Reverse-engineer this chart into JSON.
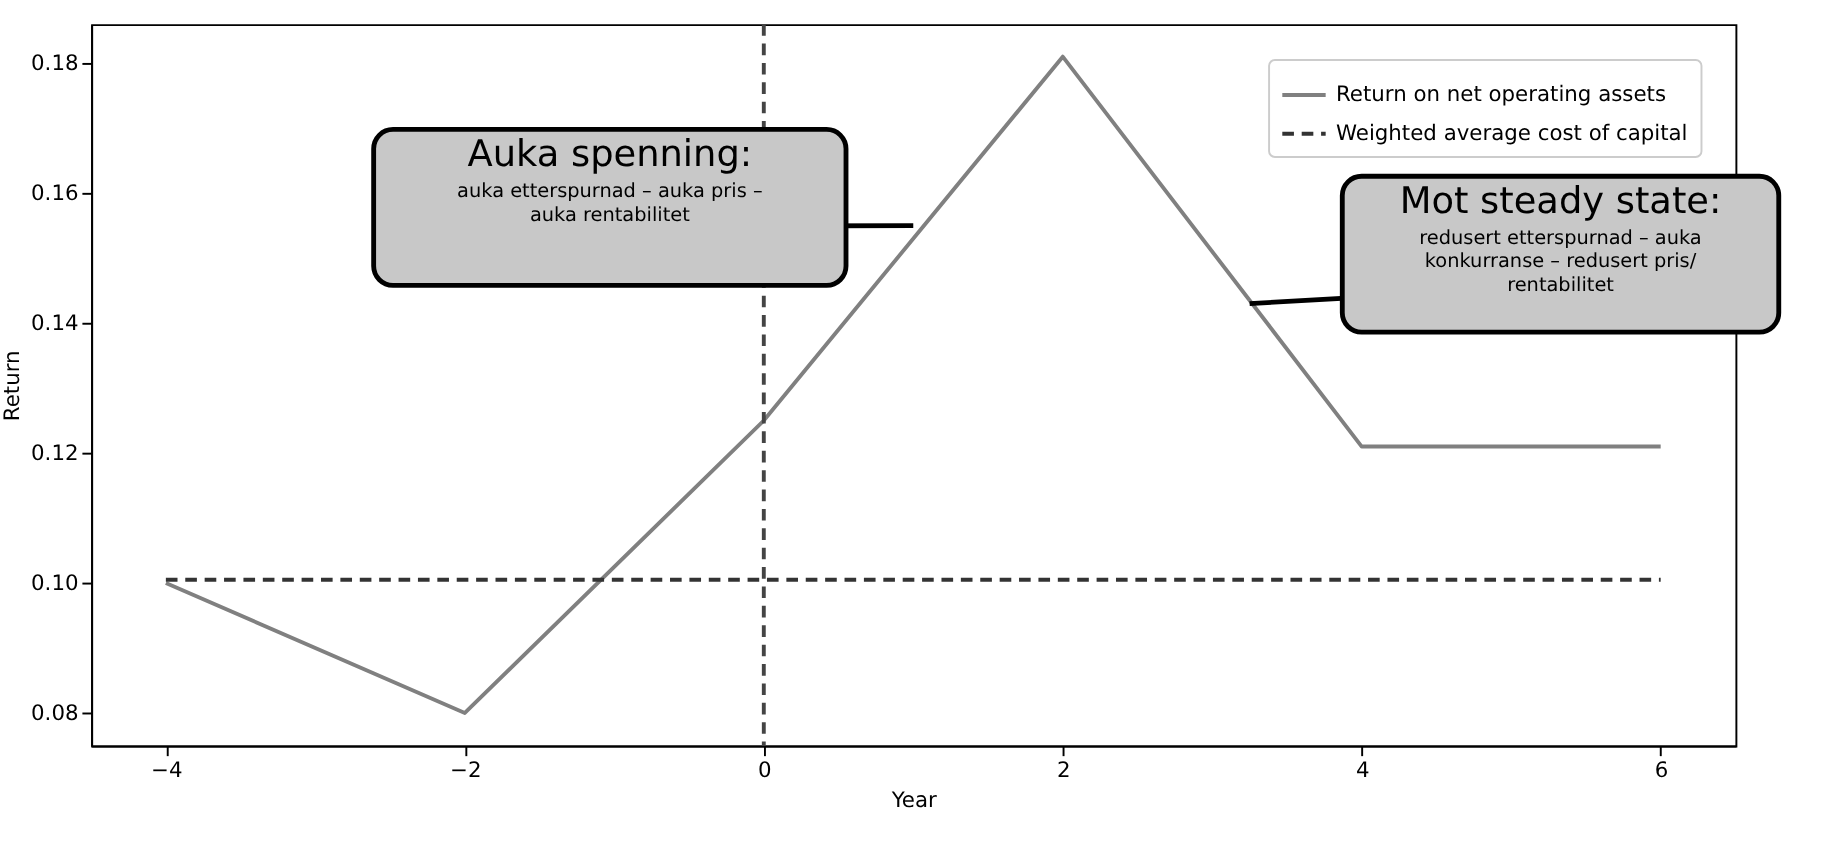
{
  "chart_data": {
    "type": "line",
    "xlabel": "Year",
    "ylabel": "Return",
    "x": [
      -4,
      -2,
      0,
      2,
      4,
      6
    ],
    "series": [
      {
        "name": "Return on net operating assets",
        "color": "#808080",
        "values": [
          0.1,
          0.08,
          0.125,
          0.181,
          0.121,
          0.121
        ],
        "line_style": "solid"
      },
      {
        "name": "Weighted average cost of capital",
        "color": "#333333",
        "values": [
          0.1005,
          0.1005,
          0.1005,
          0.1005,
          0.1005,
          0.1005
        ],
        "line_style": "dashed"
      }
    ],
    "xlim": [
      -4.5,
      6.5
    ],
    "xticks": [
      {
        "value": -4,
        "label": "−4"
      },
      {
        "value": -2,
        "label": "−2"
      },
      0,
      2,
      4,
      6
    ],
    "ylim": [
      0.075,
      0.186
    ],
    "yticks": [
      {
        "value": 0.08,
        "label": "0.08"
      },
      {
        "value": 0.1,
        "label": "0.10"
      },
      {
        "value": 0.12,
        "label": "0.12"
      },
      {
        "value": 0.14,
        "label": "0.14"
      },
      {
        "value": 0.16,
        "label": "0.16"
      },
      {
        "value": 0.18,
        "label": "0.18"
      }
    ],
    "ref_lines": [
      {
        "axis": "x",
        "value": 0,
        "color": "#444444",
        "line_style": "dashed"
      }
    ],
    "annotations": [
      "Auka spenning:\nauka etterspurnad – auka pris –\nauka rentabilitet",
      "Mot steady state:\nredusert etterspurnad – auka\nkonkurranse – redusert pris/\nrentabilitet"
    ],
    "grid": false,
    "legend": "top right",
    "marker": "none"
  }
}
